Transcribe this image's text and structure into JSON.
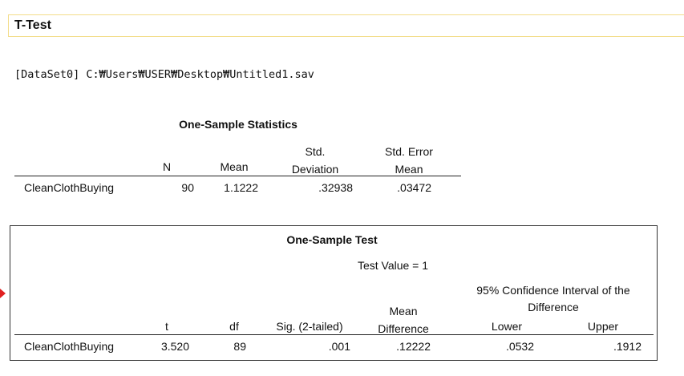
{
  "header": {
    "title": "T-Test"
  },
  "dataset": "[DataSet0] C:₩Users₩USER₩Desktop₩Untitled1.sav",
  "statistics_table": {
    "title": "One-Sample Statistics",
    "headers": [
      "N",
      "Mean",
      "Std. Deviation",
      "Std. Error Mean"
    ],
    "rows": [
      [
        "CleanClothBuying",
        "90",
        "1.1222",
        ".32938",
        ".03472"
      ]
    ]
  },
  "test_table": {
    "title": "One-Sample Test",
    "test_value": "Test Value = 1",
    "ci_header": "95% Confidence Interval of the Difference",
    "headers": [
      "t",
      "df",
      "Sig. (2-tailed)",
      "Mean Difference",
      "Lower",
      "Upper"
    ],
    "rows": [
      [
        "CleanClothBuying",
        "3.520",
        "89",
        ".001",
        ".12222",
        ".0532",
        ".1912"
      ]
    ]
  }
}
